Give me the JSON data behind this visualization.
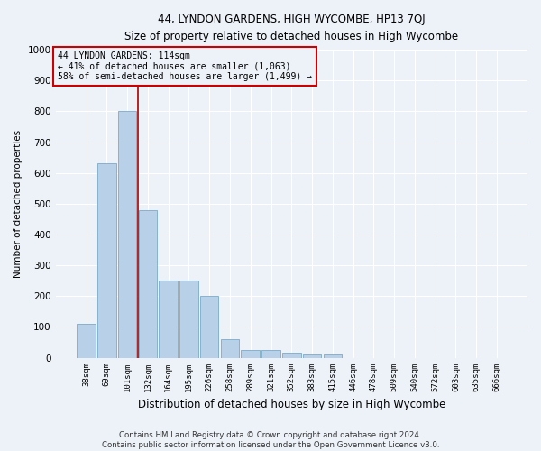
{
  "title": "44, LYNDON GARDENS, HIGH WYCOMBE, HP13 7QJ",
  "subtitle": "Size of property relative to detached houses in High Wycombe",
  "xlabel": "Distribution of detached houses by size in High Wycombe",
  "ylabel": "Number of detached properties",
  "categories": [
    "38sqm",
    "69sqm",
    "101sqm",
    "132sqm",
    "164sqm",
    "195sqm",
    "226sqm",
    "258sqm",
    "289sqm",
    "321sqm",
    "352sqm",
    "383sqm",
    "415sqm",
    "446sqm",
    "478sqm",
    "509sqm",
    "540sqm",
    "572sqm",
    "603sqm",
    "635sqm",
    "666sqm"
  ],
  "values": [
    110,
    630,
    800,
    480,
    250,
    250,
    200,
    60,
    25,
    25,
    15,
    10,
    10,
    0,
    0,
    0,
    0,
    0,
    0,
    0,
    0
  ],
  "bar_color": "#b8d0e8",
  "bar_edge_color": "#7aaac8",
  "vline_color": "#aa0000",
  "vline_index": 2.5,
  "annotation_box_text": "44 LYNDON GARDENS: 114sqm\n← 41% of detached houses are smaller (1,063)\n58% of semi-detached houses are larger (1,499) →",
  "annotation_box_color": "#cc0000",
  "ylim": [
    0,
    1000
  ],
  "yticks": [
    0,
    100,
    200,
    300,
    400,
    500,
    600,
    700,
    800,
    900,
    1000
  ],
  "footer_line1": "Contains HM Land Registry data © Crown copyright and database right 2024.",
  "footer_line2": "Contains public sector information licensed under the Open Government Licence v3.0.",
  "background_color": "#edf2f9",
  "grid_color": "#ffffff"
}
